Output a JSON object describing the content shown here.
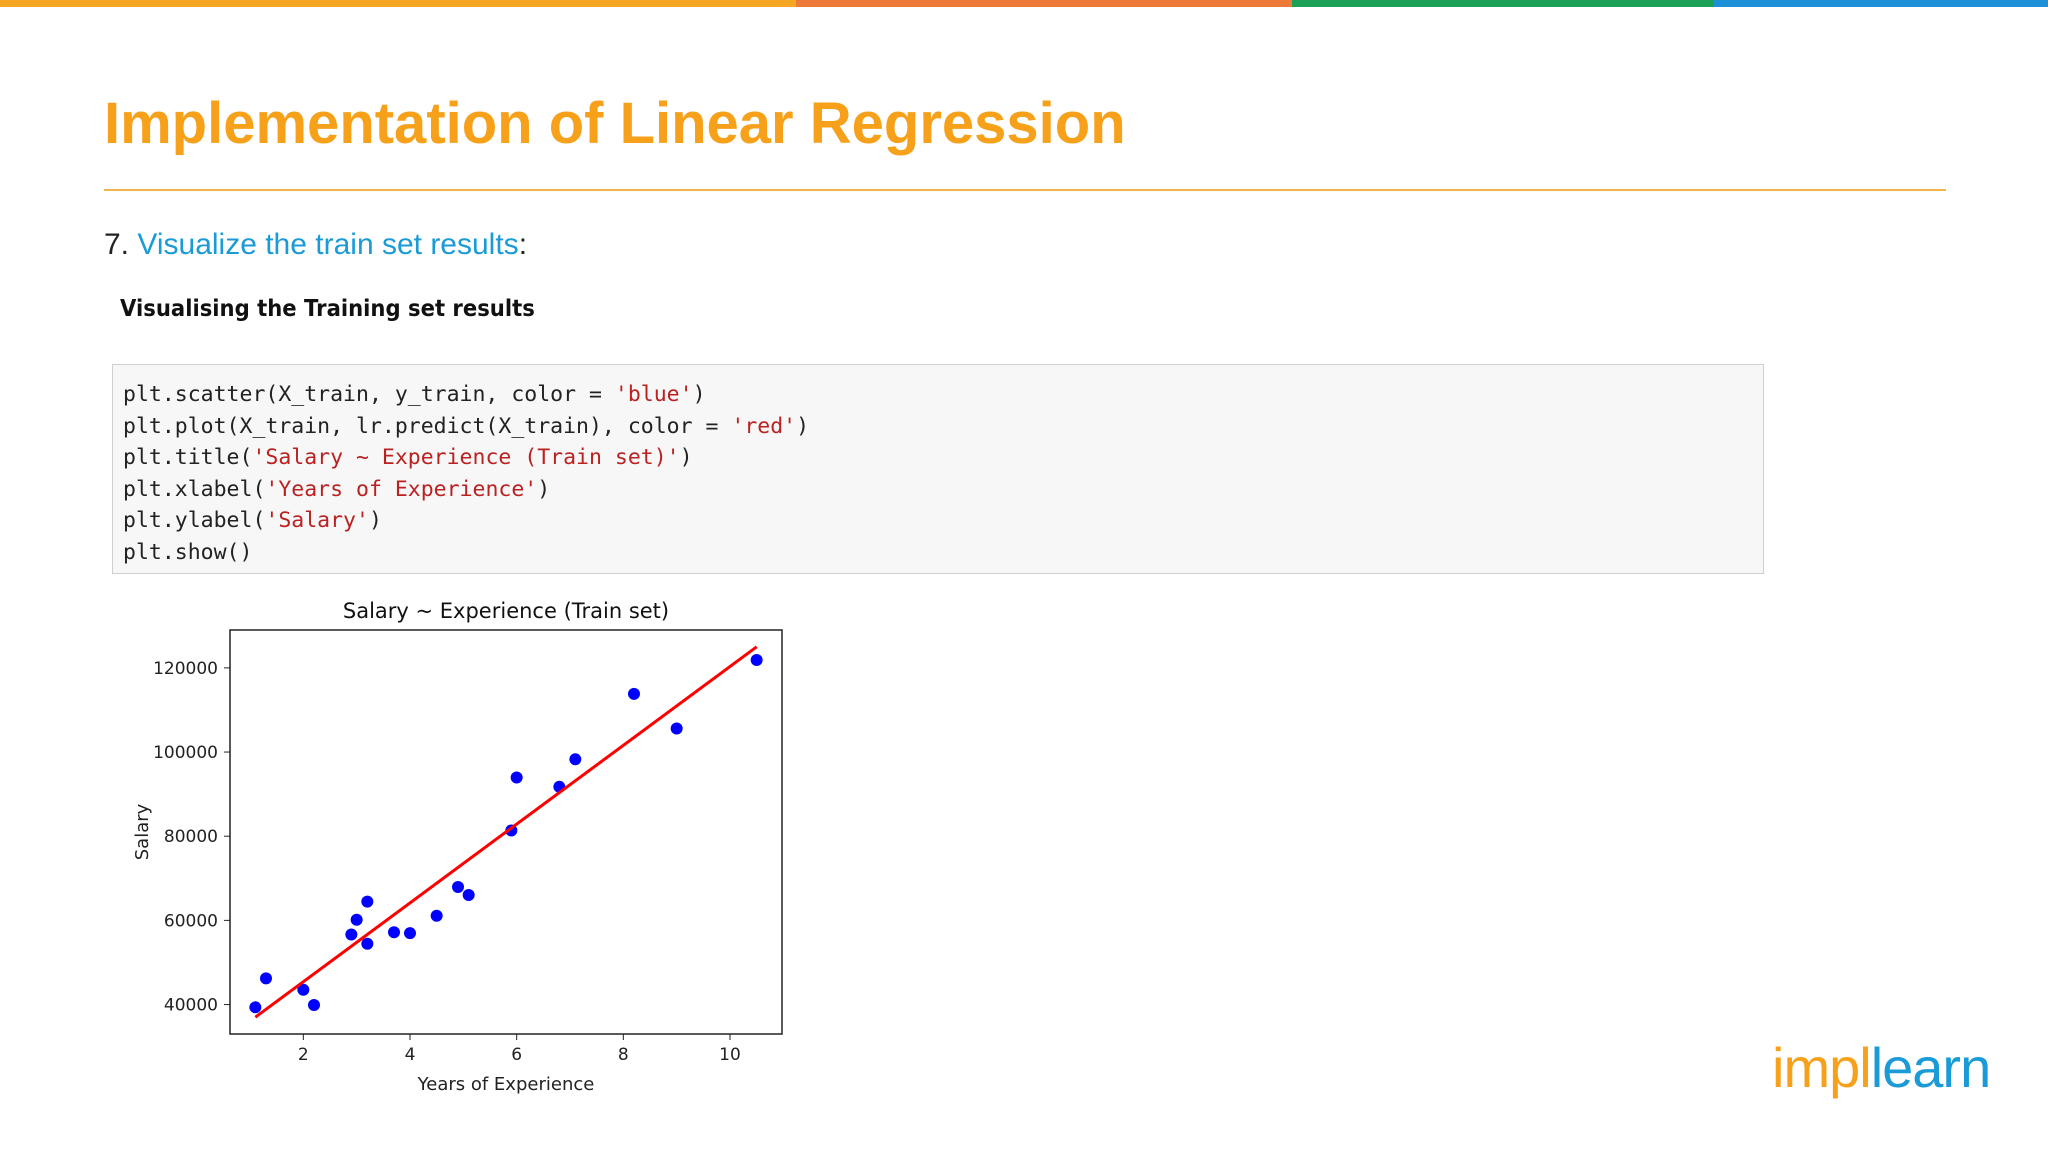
{
  "top_bar_colors": [
    "#f5a623",
    "#ee7a3a",
    "#1aa157",
    "#1e90d8"
  ],
  "title": "Implementation of Linear Regression",
  "step": {
    "number": "7.",
    "link_text": "Visualize the train set results",
    "suffix": ":"
  },
  "subheading": "Visualising the Training set results",
  "code": [
    {
      "pre": "plt.scatter(X_train, y_train, color = ",
      "str": "'blue'",
      "post": ")"
    },
    {
      "pre": "plt.plot(X_train, lr.predict(X_train), color = ",
      "str": "'red'",
      "post": ")"
    },
    {
      "pre": "plt.title(",
      "str": "'Salary ~ Experience (Train set)'",
      "post": ")"
    },
    {
      "pre": "plt.xlabel(",
      "str": "'Years of Experience'",
      "post": ")"
    },
    {
      "pre": "plt.ylabel(",
      "str": "'Salary'",
      "post": ")"
    },
    {
      "pre": "plt.show()",
      "str": "",
      "post": ""
    }
  ],
  "logo": {
    "left": "impl",
    "right": "learn",
    "left_color": "#f7a11a",
    "right_color": "#1a9bd7"
  },
  "chart_data": {
    "type": "scatter",
    "title": "Salary ~ Experience (Train set)",
    "xlabel": "Years of Experience",
    "ylabel": "Salary",
    "xlim": [
      0.625,
      10.975
    ],
    "ylim": [
      33000,
      129000
    ],
    "xticks": [
      2,
      4,
      6,
      8,
      10
    ],
    "yticks": [
      40000,
      60000,
      80000,
      100000,
      120000
    ],
    "grid": false,
    "point_color": "#0000ff",
    "line_color": "#ff0000",
    "points": [
      [
        1.1,
        39343
      ],
      [
        1.3,
        46205
      ],
      [
        2.0,
        43525
      ],
      [
        2.2,
        39891
      ],
      [
        2.9,
        56642
      ],
      [
        3.0,
        60150
      ],
      [
        3.2,
        54445
      ],
      [
        3.2,
        64445
      ],
      [
        3.7,
        57189
      ],
      [
        4.0,
        56957
      ],
      [
        4.5,
        61111
      ],
      [
        4.9,
        67938
      ],
      [
        5.1,
        66029
      ],
      [
        5.9,
        81363
      ],
      [
        6.0,
        93940
      ],
      [
        6.8,
        91738
      ],
      [
        7.1,
        98273
      ],
      [
        8.2,
        113812
      ],
      [
        9.0,
        105582
      ],
      [
        10.5,
        121872
      ]
    ],
    "fit_line": [
      [
        1.1,
        37000
      ],
      [
        10.5,
        125000
      ]
    ]
  }
}
